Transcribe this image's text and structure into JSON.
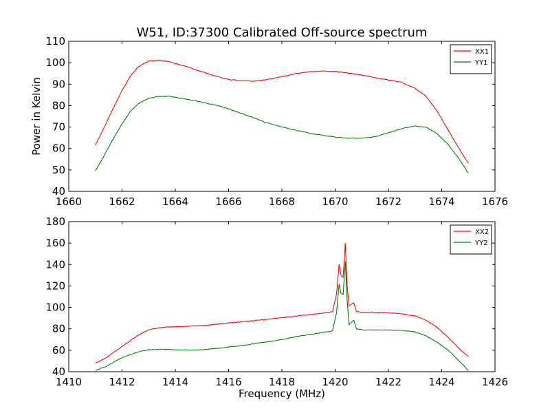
{
  "figure": {
    "title": "W51, ID:37300 Calibrated Off-source spectrum"
  },
  "chart_data": [
    {
      "type": "line",
      "title": "W51, ID:37300 Calibrated Off-source spectrum",
      "xlabel": "",
      "ylabel": "Power in Kelvin",
      "xlim": [
        1660,
        1676
      ],
      "ylim": [
        40,
        110
      ],
      "xticks": [
        1660,
        1662,
        1664,
        1666,
        1668,
        1670,
        1672,
        1674,
        1676
      ],
      "yticks": [
        40,
        50,
        60,
        70,
        80,
        90,
        100,
        110
      ],
      "grid": false,
      "legend": "top-right",
      "series": [
        {
          "name": "XX1",
          "color": "#ff0000",
          "x": [
            1661.0,
            1661.3,
            1661.6,
            1662.0,
            1662.3,
            1662.6,
            1663.0,
            1663.4,
            1663.8,
            1664.2,
            1664.6,
            1665.0,
            1665.5,
            1666.0,
            1666.5,
            1667.0,
            1667.5,
            1668.0,
            1668.5,
            1669.0,
            1669.5,
            1670.0,
            1670.5,
            1671.0,
            1671.5,
            1672.0,
            1672.5,
            1673.0,
            1673.4,
            1673.8,
            1674.2,
            1674.6,
            1675.0
          ],
          "y": [
            61.5,
            69,
            77,
            87,
            93.5,
            98,
            100.8,
            101.2,
            100.3,
            99,
            97.5,
            95.8,
            93.8,
            92.2,
            91.5,
            91.4,
            92.2,
            93.5,
            94.8,
            95.8,
            96.2,
            96,
            95.2,
            94.2,
            93,
            92,
            90.8,
            88,
            84.5,
            78,
            69.5,
            61,
            53
          ]
        },
        {
          "name": "YY1",
          "color": "#008000",
          "x": [
            1661.0,
            1661.3,
            1661.6,
            1662.0,
            1662.3,
            1662.6,
            1663.0,
            1663.4,
            1663.8,
            1664.2,
            1664.6,
            1665.0,
            1665.5,
            1666.0,
            1666.5,
            1667.0,
            1667.5,
            1668.0,
            1668.5,
            1669.0,
            1669.5,
            1670.0,
            1670.5,
            1671.0,
            1671.5,
            1672.0,
            1672.5,
            1673.0,
            1673.4,
            1673.8,
            1674.2,
            1674.6,
            1675.0
          ],
          "y": [
            49.5,
            56,
            63,
            71.5,
            77,
            80.8,
            83.5,
            84.3,
            84.3,
            83.5,
            82.6,
            81.6,
            80.3,
            78.5,
            76.3,
            74,
            71.8,
            70,
            68.5,
            67.2,
            66.2,
            65.3,
            64.8,
            64.8,
            65.5,
            67.3,
            69.3,
            70.5,
            70,
            67.2,
            62.5,
            56,
            48.5
          ]
        }
      ]
    },
    {
      "type": "line",
      "title": "",
      "xlabel": "Frequency (MHz)",
      "ylabel": "",
      "xlim": [
        1410,
        1426
      ],
      "ylim": [
        40,
        180
      ],
      "xticks": [
        1410,
        1412,
        1414,
        1416,
        1418,
        1420,
        1422,
        1424,
        1426
      ],
      "yticks": [
        40,
        60,
        80,
        100,
        120,
        140,
        160,
        180
      ],
      "grid": false,
      "legend": "top-right",
      "series": [
        {
          "name": "XX2",
          "color": "#ff0000",
          "x": [
            1411.0,
            1411.4,
            1411.8,
            1412.2,
            1412.6,
            1413.0,
            1413.5,
            1414.0,
            1414.5,
            1415.0,
            1415.5,
            1416.0,
            1416.5,
            1417.0,
            1417.5,
            1418.0,
            1418.5,
            1419.0,
            1419.5,
            1419.9,
            1420.05,
            1420.15,
            1420.22,
            1420.3,
            1420.38,
            1420.45,
            1420.52,
            1420.6,
            1420.7,
            1420.8,
            1421.0,
            1421.5,
            1422.0,
            1422.5,
            1423.0,
            1423.4,
            1423.8,
            1424.2,
            1424.6,
            1425.0
          ],
          "y": [
            48,
            53,
            60,
            67,
            74,
            79,
            81.5,
            82,
            82.3,
            83,
            84,
            85.5,
            86.5,
            87.8,
            89,
            90.3,
            91.8,
            93.2,
            94.5,
            96,
            112,
            140,
            130,
            128,
            160,
            120,
            101,
            103,
            104,
            96,
            95.5,
            95.3,
            95,
            94,
            92,
            88,
            82,
            73,
            63,
            54
          ]
        },
        {
          "name": "YY2",
          "color": "#008000",
          "x": [
            1411.0,
            1411.4,
            1411.8,
            1412.2,
            1412.6,
            1413.0,
            1413.5,
            1414.0,
            1414.5,
            1415.0,
            1415.5,
            1416.0,
            1416.5,
            1417.0,
            1417.5,
            1418.0,
            1418.5,
            1419.0,
            1419.5,
            1419.9,
            1420.05,
            1420.15,
            1420.22,
            1420.3,
            1420.38,
            1420.45,
            1420.52,
            1420.6,
            1420.7,
            1420.8,
            1421.0,
            1421.5,
            1422.0,
            1422.5,
            1423.0,
            1423.4,
            1423.8,
            1424.2,
            1424.6,
            1425.0
          ],
          "y": [
            41,
            45,
            50.5,
            55,
            58.5,
            60.5,
            61,
            60.5,
            60.2,
            60.5,
            61.5,
            63,
            64.5,
            66.3,
            68,
            70,
            72.5,
            74.5,
            76.5,
            78,
            95,
            122,
            113,
            112,
            143,
            107,
            84,
            86,
            88,
            80,
            79,
            79,
            78.8,
            78.5,
            77,
            73.5,
            68,
            61,
            51.5,
            41
          ]
        }
      ]
    }
  ]
}
